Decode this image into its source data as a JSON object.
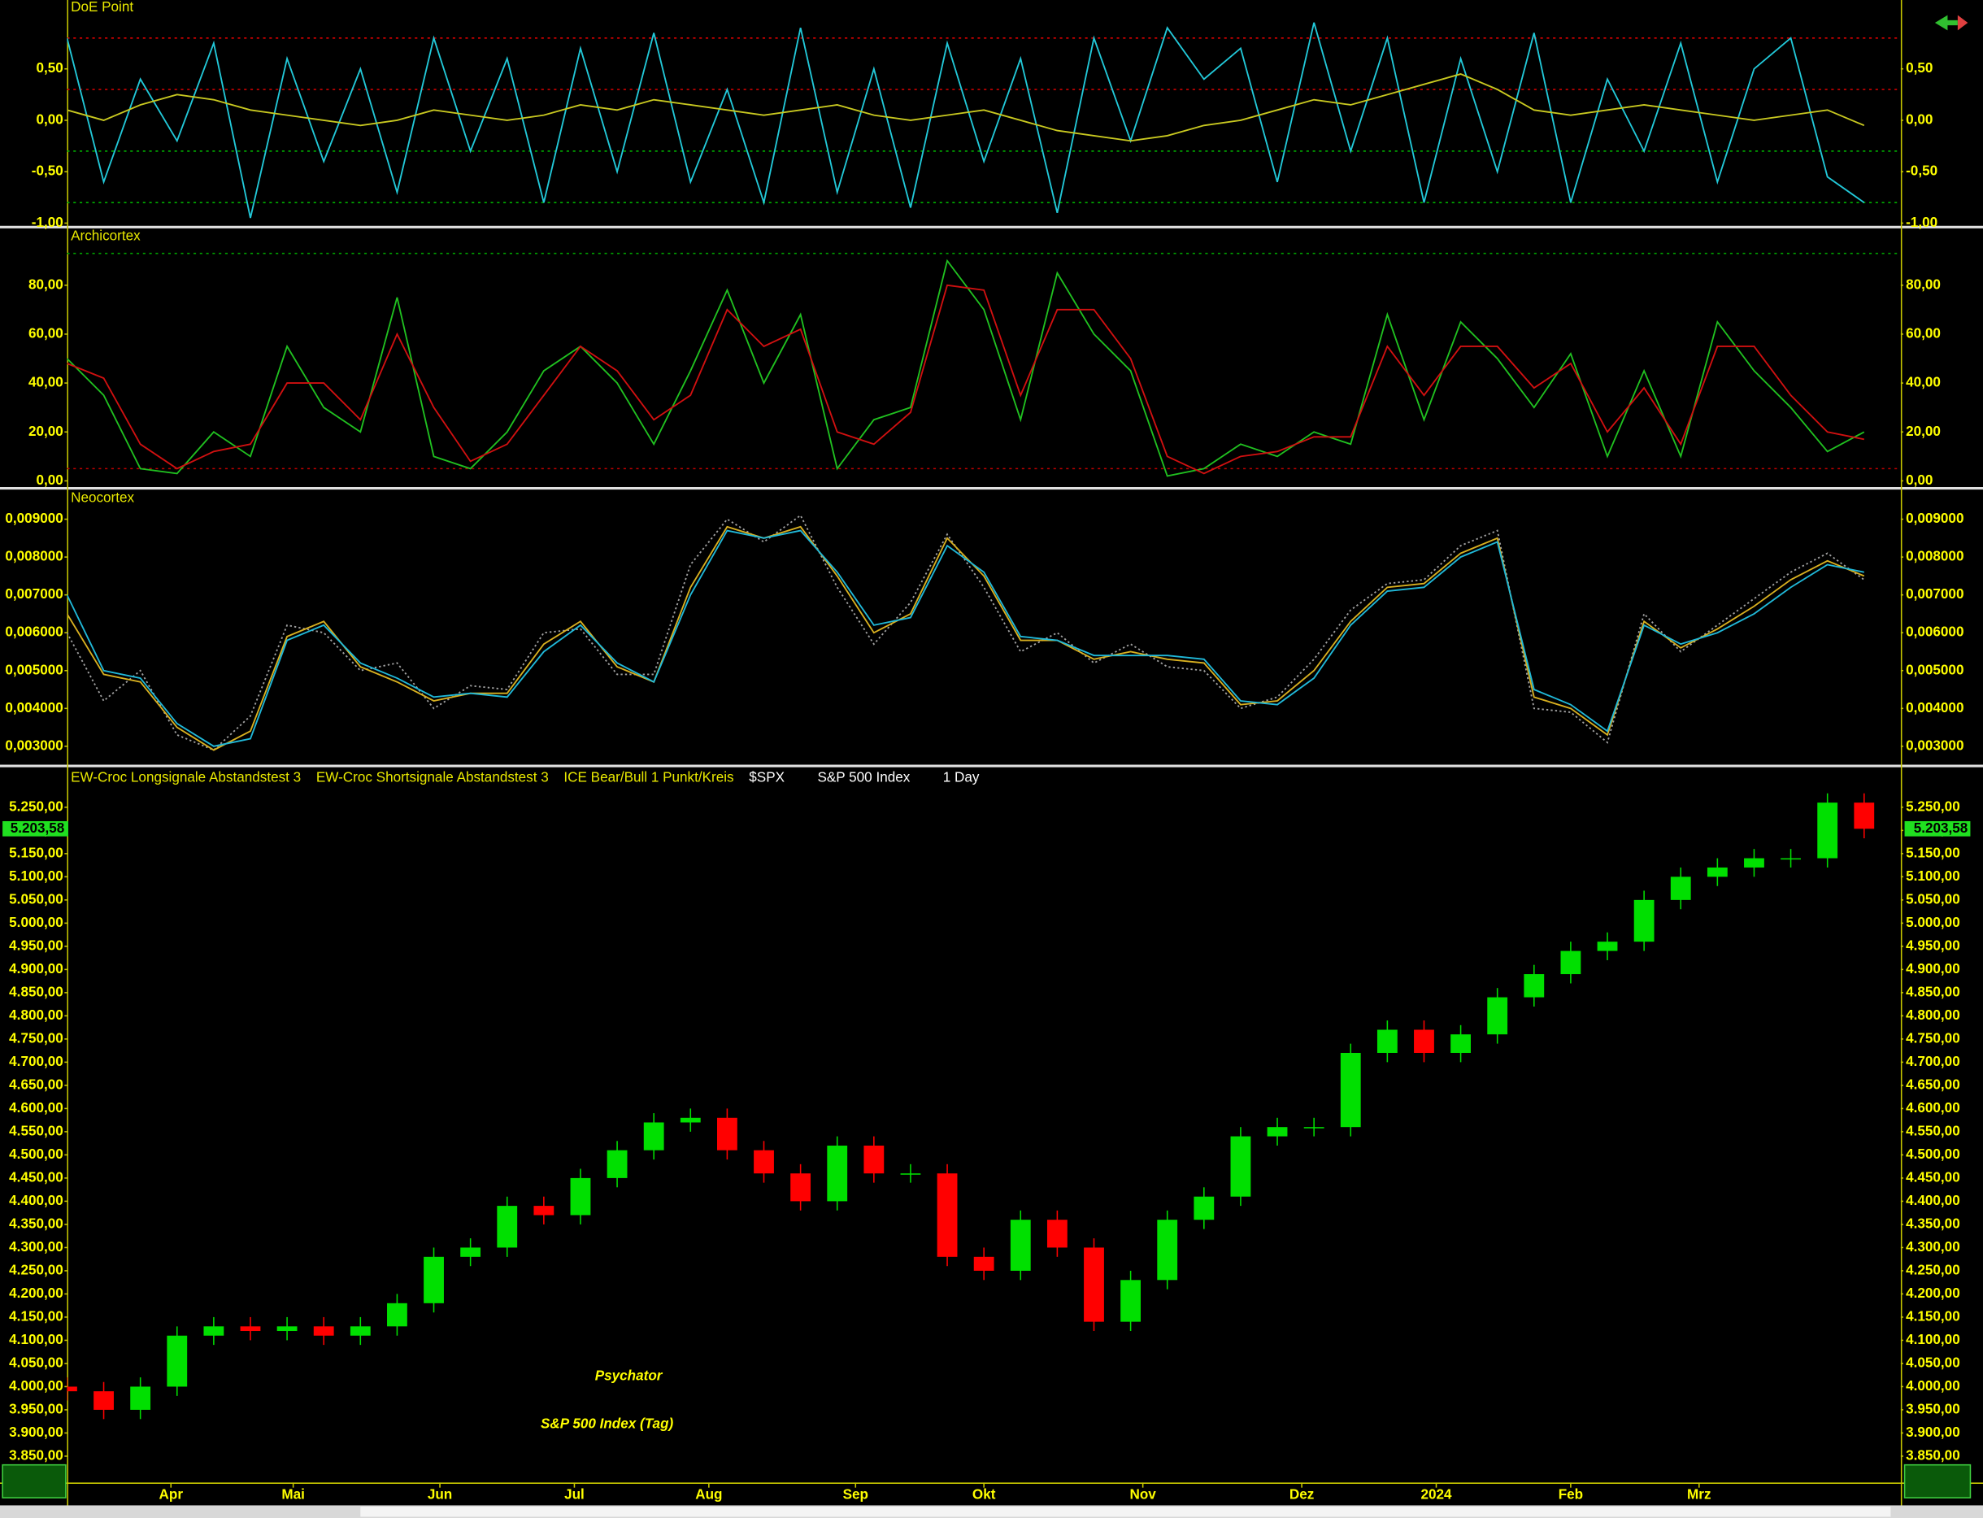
{
  "chart_data": [
    {
      "type": "line",
      "title": "DoE Point",
      "x": [
        0,
        6,
        12,
        18,
        24,
        30,
        36,
        42,
        48,
        54,
        60,
        66,
        72,
        78,
        84,
        90,
        96,
        102,
        108,
        114,
        120,
        126,
        132,
        138,
        144,
        150,
        156,
        162,
        168,
        174,
        180,
        186,
        192,
        198,
        204,
        210,
        216,
        222,
        228,
        234,
        240,
        246,
        252,
        258,
        264,
        270,
        276,
        282,
        288,
        294
      ],
      "xlim": [
        0,
        300
      ],
      "ylim": [
        -1.02,
        1.17
      ],
      "yticks": [
        {
          "value": 0.5,
          "label": "0,50"
        },
        {
          "value": 0,
          "label": "0,00"
        },
        {
          "value": -0.5,
          "label": "-0,50"
        },
        {
          "value": -1,
          "label": "-1,00"
        }
      ],
      "hlines": [
        {
          "value": 0.8,
          "color": "#e00000"
        },
        {
          "value": 0.3,
          "color": "#e00000"
        },
        {
          "value": -0.3,
          "color": "#00c000"
        },
        {
          "value": -0.8,
          "color": "#00c000"
        }
      ],
      "series": [
        {
          "color": "#22c8d8",
          "values": [
            0.8,
            -0.6,
            0.4,
            -0.2,
            0.75,
            -0.95,
            0.6,
            -0.4,
            0.5,
            -0.7,
            0.8,
            -0.3,
            0.6,
            -0.8,
            0.7,
            -0.5,
            0.85,
            -0.6,
            0.3,
            -0.8,
            0.9,
            -0.7,
            0.5,
            -0.85,
            0.75,
            -0.4,
            0.6,
            -0.9,
            0.8,
            -0.2,
            0.9,
            0.4,
            0.7,
            -0.6,
            0.95,
            -0.3,
            0.8,
            -0.8,
            0.6,
            -0.5,
            0.85,
            -0.8,
            0.4,
            -0.3,
            0.75,
            -0.6,
            0.5,
            0.8,
            -0.55,
            -0.8
          ]
        },
        {
          "color": "#c8c820",
          "values": [
            0.1,
            0.0,
            0.15,
            0.25,
            0.2,
            0.1,
            0.05,
            0.0,
            -0.05,
            0.0,
            0.1,
            0.05,
            0.0,
            0.05,
            0.15,
            0.1,
            0.2,
            0.15,
            0.1,
            0.05,
            0.1,
            0.15,
            0.05,
            0.0,
            0.05,
            0.1,
            0.0,
            -0.1,
            -0.15,
            -0.2,
            -0.15,
            -0.05,
            0.0,
            0.1,
            0.2,
            0.15,
            0.25,
            0.35,
            0.45,
            0.3,
            0.1,
            0.05,
            0.1,
            0.15,
            0.1,
            0.05,
            0.0,
            0.05,
            0.1,
            -0.05
          ]
        }
      ]
    },
    {
      "type": "line",
      "title": "Archicortex",
      "x": [
        0,
        6,
        12,
        18,
        24,
        30,
        36,
        42,
        48,
        54,
        60,
        66,
        72,
        78,
        84,
        90,
        96,
        102,
        108,
        114,
        120,
        126,
        132,
        138,
        144,
        150,
        156,
        162,
        168,
        174,
        180,
        186,
        192,
        198,
        204,
        210,
        216,
        222,
        228,
        234,
        240,
        246,
        252,
        258,
        264,
        270,
        276,
        282,
        288,
        294
      ],
      "xlim": [
        0,
        300
      ],
      "ylim": [
        -2,
        103
      ],
      "yticks": [
        {
          "value": 0,
          "label": "0,00"
        },
        {
          "value": 20,
          "label": "20,00"
        },
        {
          "value": 40,
          "label": "40,00"
        },
        {
          "value": 60,
          "label": "60,00"
        },
        {
          "value": 80,
          "label": "80,00"
        }
      ],
      "hlines": [
        {
          "value": 93,
          "color": "#00a000"
        },
        {
          "value": 5,
          "color": "#c00000"
        }
      ],
      "series": [
        {
          "color": "#20c020",
          "values": [
            50,
            35,
            5,
            3,
            20,
            10,
            55,
            30,
            20,
            75,
            10,
            5,
            20,
            45,
            55,
            40,
            15,
            45,
            78,
            40,
            68,
            5,
            25,
            30,
            90,
            70,
            25,
            85,
            60,
            45,
            2,
            5,
            15,
            10,
            20,
            15,
            68,
            25,
            65,
            50,
            30,
            52,
            10,
            45,
            10,
            65,
            45,
            30,
            12,
            20
          ]
        },
        {
          "color": "#d01010",
          "values": [
            48,
            42,
            15,
            5,
            12,
            15,
            40,
            40,
            25,
            60,
            30,
            8,
            15,
            35,
            55,
            45,
            25,
            35,
            70,
            55,
            62,
            20,
            15,
            28,
            80,
            78,
            35,
            70,
            70,
            50,
            10,
            3,
            10,
            12,
            18,
            18,
            55,
            35,
            55,
            55,
            38,
            48,
            20,
            38,
            15,
            55,
            55,
            35,
            20,
            17
          ]
        }
      ]
    },
    {
      "type": "line",
      "title": "Neocortex",
      "x": [
        0,
        6,
        12,
        18,
        24,
        30,
        36,
        42,
        48,
        54,
        60,
        66,
        72,
        78,
        84,
        90,
        96,
        102,
        108,
        114,
        120,
        126,
        132,
        138,
        144,
        150,
        156,
        162,
        168,
        174,
        180,
        186,
        192,
        198,
        204,
        210,
        216,
        222,
        228,
        234,
        240,
        246,
        252,
        258,
        264,
        270,
        276,
        282,
        288,
        294
      ],
      "xlim": [
        0,
        300
      ],
      "ylim": [
        0.00253,
        0.00975
      ],
      "yticks": [
        {
          "value": 0.003,
          "label": "0,003000"
        },
        {
          "value": 0.004,
          "label": "0,004000"
        },
        {
          "value": 0.005,
          "label": "0,005000"
        },
        {
          "value": 0.006,
          "label": "0,006000"
        },
        {
          "value": 0.007,
          "label": "0,007000"
        },
        {
          "value": 0.008,
          "label": "0,008000"
        },
        {
          "value": 0.009,
          "label": "0,009000"
        }
      ],
      "series": [
        {
          "color": "#a0a0a0",
          "style": "dotted",
          "values": [
            0.006,
            0.0042,
            0.005,
            0.0033,
            0.0029,
            0.0038,
            0.0062,
            0.006,
            0.005,
            0.0052,
            0.004,
            0.0046,
            0.0045,
            0.006,
            0.0061,
            0.0049,
            0.0049,
            0.0078,
            0.009,
            0.0084,
            0.0091,
            0.0072,
            0.0057,
            0.0068,
            0.0086,
            0.0072,
            0.0055,
            0.006,
            0.0052,
            0.0057,
            0.0051,
            0.005,
            0.004,
            0.0043,
            0.0053,
            0.0066,
            0.0073,
            0.0074,
            0.0083,
            0.0087,
            0.004,
            0.0039,
            0.0031,
            0.0065,
            0.0055,
            0.0062,
            0.0069,
            0.0076,
            0.0081,
            0.0074
          ]
        },
        {
          "color": "#d8b020",
          "values": [
            0.0065,
            0.0049,
            0.0047,
            0.0035,
            0.0029,
            0.0034,
            0.0059,
            0.0063,
            0.0051,
            0.0047,
            0.0042,
            0.0044,
            0.0044,
            0.0057,
            0.0063,
            0.0051,
            0.0047,
            0.0072,
            0.0088,
            0.0085,
            0.0088,
            0.0075,
            0.006,
            0.0065,
            0.0085,
            0.0075,
            0.0058,
            0.0058,
            0.0053,
            0.0055,
            0.0053,
            0.0052,
            0.0041,
            0.0042,
            0.005,
            0.0063,
            0.0072,
            0.0073,
            0.0081,
            0.0085,
            0.0043,
            0.004,
            0.0033,
            0.0063,
            0.0056,
            0.0061,
            0.0067,
            0.0074,
            0.0079,
            0.0075
          ]
        },
        {
          "color": "#20b8d8",
          "values": [
            0.007,
            0.005,
            0.0048,
            0.0036,
            0.003,
            0.0032,
            0.0058,
            0.0062,
            0.0052,
            0.0048,
            0.0043,
            0.0044,
            0.0043,
            0.0055,
            0.0062,
            0.0052,
            0.0047,
            0.007,
            0.0087,
            0.0085,
            0.0087,
            0.0076,
            0.0062,
            0.0064,
            0.0083,
            0.0076,
            0.0059,
            0.0058,
            0.0054,
            0.0054,
            0.0054,
            0.0053,
            0.0042,
            0.0041,
            0.0048,
            0.0062,
            0.0071,
            0.0072,
            0.008,
            0.0084,
            0.0045,
            0.0041,
            0.0034,
            0.0062,
            0.0057,
            0.006,
            0.0065,
            0.0072,
            0.0078,
            0.0076
          ]
        }
      ]
    },
    {
      "type": "candlestick",
      "title": "Psychator",
      "subtitle": "S&P 500 Index (Tag)",
      "legend": [
        "EW-Croc Longsignale Abstandstest 3",
        "EW-Croc Shortsignale Abstandstest 3",
        "ICE Bear/Bull 1 Punkt/Kreis",
        "$SPX",
        "S&P 500 Index",
        "1 Day"
      ],
      "x": [
        0,
        6,
        12,
        18,
        24,
        30,
        36,
        42,
        48,
        54,
        60,
        66,
        72,
        78,
        84,
        90,
        96,
        102,
        108,
        114,
        120,
        126,
        132,
        138,
        144,
        150,
        156,
        162,
        168,
        174,
        180,
        186,
        192,
        198,
        204,
        210,
        216,
        222,
        228,
        234,
        240,
        246,
        252,
        258,
        264,
        270,
        276,
        282,
        288,
        294
      ],
      "open": [
        4000,
        3990,
        3950,
        4000,
        4110,
        4130,
        4120,
        4130,
        4110,
        4130,
        4180,
        4280,
        4300,
        4390,
        4370,
        4450,
        4510,
        4570,
        4580,
        4510,
        4460,
        4400,
        4520,
        4460,
        4460,
        4280,
        4250,
        4360,
        4300,
        4140,
        4230,
        4360,
        4410,
        4540,
        4560,
        4560,
        4720,
        4770,
        4720,
        4760,
        4840,
        4890,
        4940,
        4960,
        5050,
        5100,
        5120,
        5140,
        5140,
        5260
      ],
      "high": [
        4020,
        4010,
        4020,
        4130,
        4150,
        4150,
        4150,
        4150,
        4150,
        4200,
        4300,
        4320,
        4410,
        4410,
        4470,
        4530,
        4590,
        4600,
        4600,
        4530,
        4480,
        4540,
        4540,
        4480,
        4480,
        4300,
        4380,
        4380,
        4320,
        4250,
        4380,
        4430,
        4560,
        4580,
        4580,
        4740,
        4790,
        4790,
        4780,
        4860,
        4910,
        4960,
        4980,
        5070,
        5120,
        5140,
        5160,
        5160,
        5280,
        5280
      ],
      "low": [
        3970,
        3930,
        3930,
        3980,
        4090,
        4100,
        4100,
        4090,
        4090,
        4110,
        4160,
        4260,
        4280,
        4350,
        4350,
        4430,
        4490,
        4550,
        4490,
        4440,
        4380,
        4380,
        4440,
        4440,
        4260,
        4230,
        4230,
        4280,
        4120,
        4120,
        4210,
        4340,
        4390,
        4520,
        4540,
        4540,
        4700,
        4700,
        4700,
        4740,
        4820,
        4870,
        4920,
        4940,
        5030,
        5080,
        5100,
        5120,
        5120,
        5183
      ],
      "close": [
        3990,
        3950,
        4000,
        4110,
        4130,
        4120,
        4130,
        4110,
        4130,
        4180,
        4280,
        4300,
        4390,
        4370,
        4450,
        4510,
        4570,
        4580,
        4510,
        4460,
        4400,
        4520,
        4460,
        4460,
        4280,
        4250,
        4360,
        4300,
        4140,
        4230,
        4360,
        4410,
        4540,
        4560,
        4560,
        4720,
        4770,
        4720,
        4760,
        4840,
        4890,
        4940,
        4960,
        5050,
        5100,
        5120,
        5140,
        5140,
        5260,
        5203.58
      ],
      "up_color": "#00e000",
      "down_color": "#ff0000",
      "last_price": {
        "value": 5203.58,
        "label": "5.203,58"
      },
      "xlim": [
        0,
        300
      ],
      "ylim": [
        3793,
        5335
      ],
      "xticks": [
        {
          "value": 17,
          "label": "Apr"
        },
        {
          "value": 37,
          "label": "Mai"
        },
        {
          "value": 61,
          "label": "Jun"
        },
        {
          "value": 83,
          "label": "Jul"
        },
        {
          "value": 105,
          "label": "Aug"
        },
        {
          "value": 129,
          "label": "Sep"
        },
        {
          "value": 150,
          "label": "Okt"
        },
        {
          "value": 176,
          "label": "Nov"
        },
        {
          "value": 202,
          "label": "Dez"
        },
        {
          "value": 224,
          "label": "2024"
        },
        {
          "value": 246,
          "label": "Feb"
        },
        {
          "value": 267,
          "label": "Mrz"
        }
      ],
      "yticks": [
        {
          "value": 3850,
          "label": "3.850,00"
        },
        {
          "value": 3900,
          "label": "3.900,00"
        },
        {
          "value": 3950,
          "label": "3.950,00"
        },
        {
          "value": 4000,
          "label": "4.000,00"
        },
        {
          "value": 4050,
          "label": "4.050,00"
        },
        {
          "value": 4100,
          "label": "4.100,00"
        },
        {
          "value": 4150,
          "label": "4.150,00"
        },
        {
          "value": 4200,
          "label": "4.200,00"
        },
        {
          "value": 4250,
          "label": "4.250,00"
        },
        {
          "value": 4300,
          "label": "4.300,00"
        },
        {
          "value": 4350,
          "label": "4.350,00"
        },
        {
          "value": 4400,
          "label": "4.400,00"
        },
        {
          "value": 4450,
          "label": "4.450,00"
        },
        {
          "value": 4500,
          "label": "4.500,00"
        },
        {
          "value": 4550,
          "label": "4.550,00"
        },
        {
          "value": 4600,
          "label": "4.600,00"
        },
        {
          "value": 4650,
          "label": "4.650,00"
        },
        {
          "value": 4700,
          "label": "4.700,00"
        },
        {
          "value": 4750,
          "label": "4.750,00"
        },
        {
          "value": 4800,
          "label": "4.800,00"
        },
        {
          "value": 4850,
          "label": "4.850,00"
        },
        {
          "value": 4900,
          "label": "4.900,00"
        },
        {
          "value": 4950,
          "label": "4.950,00"
        },
        {
          "value": 5000,
          "label": "5.000,00"
        },
        {
          "value": 5050,
          "label": "5.050,00"
        },
        {
          "value": 5100,
          "label": "5.100,00"
        },
        {
          "value": 5150,
          "label": "5.150,00"
        },
        {
          "value": 5200,
          "label": "5.200,00"
        },
        {
          "value": 5250,
          "label": "5.250,00"
        }
      ]
    }
  ]
}
